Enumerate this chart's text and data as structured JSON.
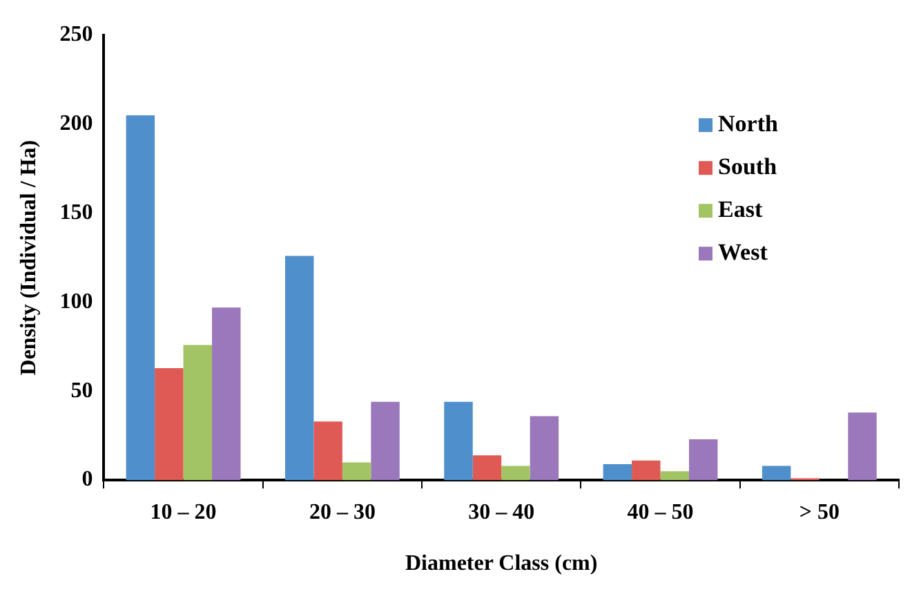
{
  "chart_data": {
    "type": "bar",
    "xlabel": "Diameter Class (cm)",
    "ylabel": "Density (Individual / Ha)",
    "categories": [
      "10 – 20",
      "20 – 30",
      "30 – 40",
      "40 – 50",
      "> 50"
    ],
    "series": [
      {
        "name": "North",
        "color": "#4f8fcb",
        "values": [
          205,
          126,
          44,
          9,
          8
        ]
      },
      {
        "name": "South",
        "color": "#e05a55",
        "values": [
          63,
          33,
          14,
          11,
          1
        ]
      },
      {
        "name": "East",
        "color": "#a3c464",
        "values": [
          76,
          10,
          8,
          5,
          0
        ]
      },
      {
        "name": "West",
        "color": "#9a78bb",
        "values": [
          97,
          44,
          36,
          23,
          38
        ]
      }
    ],
    "ylim": [
      0,
      250
    ],
    "yticks": [
      0,
      50,
      100,
      150,
      200,
      250
    ],
    "grid": false,
    "legend": "top right"
  }
}
